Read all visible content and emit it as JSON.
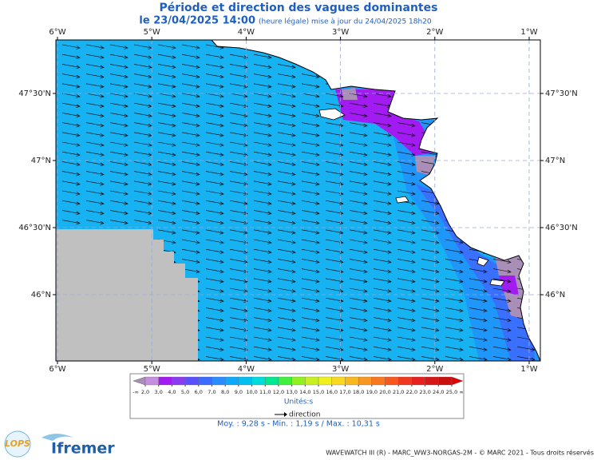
{
  "title": "Période et direction des vagues dominantes",
  "subtitle_date": "le 23/04/2025 14:00",
  "subtitle_note": "(heure légale) mise à jour du 24/04/2025 18h20",
  "lon_ticks": [
    {
      "value": -6,
      "label": "6°W"
    },
    {
      "value": -5,
      "label": "5°W"
    },
    {
      "value": -4,
      "label": "4°W"
    },
    {
      "value": -3,
      "label": "3°W"
    },
    {
      "value": -2,
      "label": "2°W"
    },
    {
      "value": -1,
      "label": "1°W"
    }
  ],
  "lat_ticks": [
    {
      "value": 47.5,
      "label": "47°30'N"
    },
    {
      "value": 47,
      "label": "47°N"
    },
    {
      "value": 46.5,
      "label": "46°30'N"
    },
    {
      "value": 46,
      "label": "46°N"
    }
  ],
  "legend": {
    "low_label": "-∞",
    "high_label": "∞",
    "ticks": [
      {
        "value": 2,
        "label": "2,0"
      },
      {
        "value": 3,
        "label": "3,0"
      },
      {
        "value": 4,
        "label": "4,0"
      },
      {
        "value": 5,
        "label": "5,0"
      },
      {
        "value": 6,
        "label": "6,0"
      },
      {
        "value": 7,
        "label": "7,0"
      },
      {
        "value": 8,
        "label": "8,0"
      },
      {
        "value": 9,
        "label": "9,0"
      },
      {
        "value": 10,
        "label": "10,0"
      },
      {
        "value": 11,
        "label": "11,0"
      },
      {
        "value": 12,
        "label": "12,0"
      },
      {
        "value": 13,
        "label": "13,0"
      },
      {
        "value": 14,
        "label": "14,0"
      },
      {
        "value": 15,
        "label": "15,0"
      },
      {
        "value": 16,
        "label": "16,0"
      },
      {
        "value": 17,
        "label": "17,0"
      },
      {
        "value": 18,
        "label": "18,0"
      },
      {
        "value": 19,
        "label": "19,0"
      },
      {
        "value": 20,
        "label": "20,0"
      },
      {
        "value": 21,
        "label": "21,0"
      },
      {
        "value": 22,
        "label": "22,0"
      },
      {
        "value": 23,
        "label": "23,0"
      },
      {
        "value": 24,
        "label": "24,0"
      },
      {
        "value": 25,
        "label": "25,0"
      }
    ],
    "colors": [
      "#a98fb8",
      "#c48fdc",
      "#a21cf2",
      "#8a3cf0",
      "#5a50ff",
      "#3b6cff",
      "#2a8cff",
      "#10a8ff",
      "#00c0f0",
      "#00dcdc",
      "#00e890",
      "#40f040",
      "#90f020",
      "#c8f020",
      "#f0f020",
      "#f8d820",
      "#f8b820",
      "#f89820",
      "#f87820",
      "#f85820",
      "#f03820",
      "#e82020",
      "#d81818",
      "#c81010",
      "#e00000"
    ],
    "units": "Unités:s",
    "direction": "direction"
  },
  "stats": "Moy. : 9,28 s   -   Min. : 1,19 s / Max. : 10,31 s",
  "footer": "WAVEWATCH III (R) - MARC_WW3-NORGAS-2M - © MARC 2021 - Tous droits réservés",
  "logo_lops": "LOPS",
  "logo_ifremer": "Ifremer"
}
